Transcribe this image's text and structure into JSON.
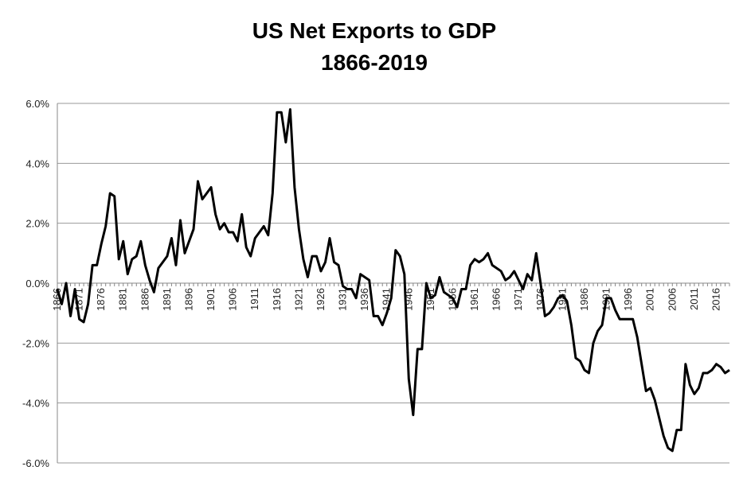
{
  "chart_data": {
    "type": "line",
    "title": "US Net Exports to GDP",
    "subtitle": "1866-2019",
    "x": [
      1866,
      1867,
      1868,
      1869,
      1870,
      1871,
      1872,
      1873,
      1874,
      1875,
      1876,
      1877,
      1878,
      1879,
      1880,
      1881,
      1882,
      1883,
      1884,
      1885,
      1886,
      1887,
      1888,
      1889,
      1890,
      1891,
      1892,
      1893,
      1894,
      1895,
      1896,
      1897,
      1898,
      1899,
      1900,
      1901,
      1902,
      1903,
      1904,
      1905,
      1906,
      1907,
      1908,
      1909,
      1910,
      1911,
      1912,
      1913,
      1914,
      1915,
      1916,
      1917,
      1918,
      1919,
      1920,
      1921,
      1922,
      1923,
      1924,
      1925,
      1926,
      1927,
      1928,
      1929,
      1930,
      1931,
      1932,
      1933,
      1934,
      1935,
      1936,
      1937,
      1938,
      1939,
      1940,
      1941,
      1942,
      1943,
      1944,
      1945,
      1946,
      1947,
      1948,
      1949,
      1950,
      1951,
      1952,
      1953,
      1954,
      1955,
      1956,
      1957,
      1958,
      1959,
      1960,
      1961,
      1962,
      1963,
      1964,
      1965,
      1966,
      1967,
      1968,
      1969,
      1970,
      1971,
      1972,
      1973,
      1974,
      1975,
      1976,
      1977,
      1978,
      1979,
      1980,
      1981,
      1982,
      1983,
      1984,
      1985,
      1986,
      1987,
      1988,
      1989,
      1990,
      1991,
      1992,
      1993,
      1994,
      1995,
      1996,
      1997,
      1998,
      1999,
      2000,
      2001,
      2002,
      2003,
      2004,
      2005,
      2006,
      2007,
      2008,
      2009,
      2010,
      2011,
      2012,
      2013,
      2014,
      2015,
      2016,
      2017,
      2018,
      2019
    ],
    "series": [
      {
        "name": "Net Exports to GDP",
        "color": "#000000",
        "values": [
          -0.2,
          -0.7,
          0.0,
          -1.1,
          -0.2,
          -1.2,
          -1.3,
          -0.7,
          0.6,
          0.6,
          1.3,
          1.9,
          3.0,
          2.9,
          0.8,
          1.4,
          0.3,
          0.8,
          0.9,
          1.4,
          0.6,
          0.1,
          -0.3,
          0.5,
          0.7,
          0.9,
          1.5,
          0.6,
          2.1,
          1.0,
          1.4,
          1.8,
          3.4,
          2.8,
          3.0,
          3.2,
          2.3,
          1.8,
          2.0,
          1.7,
          1.7,
          1.4,
          2.3,
          1.2,
          0.9,
          1.5,
          1.7,
          1.9,
          1.6,
          3.0,
          5.7,
          5.7,
          4.7,
          5.8,
          3.2,
          1.8,
          0.8,
          0.2,
          0.9,
          0.9,
          0.4,
          0.7,
          1.5,
          0.7,
          0.6,
          -0.1,
          -0.2,
          -0.2,
          -0.5,
          0.3,
          0.2,
          0.1,
          -1.1,
          -1.1,
          -1.4,
          -1.0,
          -0.5,
          1.1,
          0.9,
          0.3,
          -3.2,
          -4.4,
          -2.2,
          -2.2,
          0.0,
          -0.5,
          -0.4,
          0.2,
          -0.3,
          -0.4,
          -0.5,
          -0.8,
          -0.2,
          -0.2,
          0.6,
          0.8,
          0.7,
          0.8,
          1.0,
          0.6,
          0.5,
          0.4,
          0.1,
          0.2,
          0.4,
          0.1,
          -0.2,
          0.3,
          0.1,
          1.0,
          0.0,
          -1.1,
          -1.0,
          -0.8,
          -0.5,
          -0.4,
          -0.6,
          -1.4,
          -2.5,
          -2.6,
          -2.9,
          -3.0,
          -2.0,
          -1.6,
          -1.4,
          -0.5,
          -0.5,
          -0.9,
          -1.2,
          -1.2,
          -1.2,
          -1.2,
          -1.8,
          -2.7,
          -3.6,
          -3.5,
          -3.9,
          -4.5,
          -5.1,
          -5.5,
          -5.6,
          -4.9,
          -4.9,
          -2.7,
          -3.4,
          -3.7,
          -3.5,
          -3.0,
          -3.0,
          -2.9,
          -2.7,
          -2.8,
          -3.0,
          -2.9
        ]
      }
    ],
    "xlim": [
      1866,
      2019
    ],
    "xticks": [
      1866,
      1871,
      1876,
      1881,
      1886,
      1891,
      1896,
      1901,
      1906,
      1911,
      1916,
      1921,
      1926,
      1931,
      1936,
      1941,
      1946,
      1951,
      1956,
      1961,
      1966,
      1971,
      1976,
      1981,
      1986,
      1991,
      1996,
      2001,
      2006,
      2011,
      2016
    ],
    "ylim": [
      -6,
      6
    ],
    "yticks": [
      {
        "value": -6,
        "label": "-6.0%"
      },
      {
        "value": -4,
        "label": "-4.0%"
      },
      {
        "value": -2,
        "label": "-2.0%"
      },
      {
        "value": 0,
        "label": "0.0%"
      },
      {
        "value": 2,
        "label": "2.0%"
      },
      {
        "value": 4,
        "label": "4.0%"
      },
      {
        "value": 6,
        "label": "6.0%"
      }
    ],
    "grid": true
  }
}
